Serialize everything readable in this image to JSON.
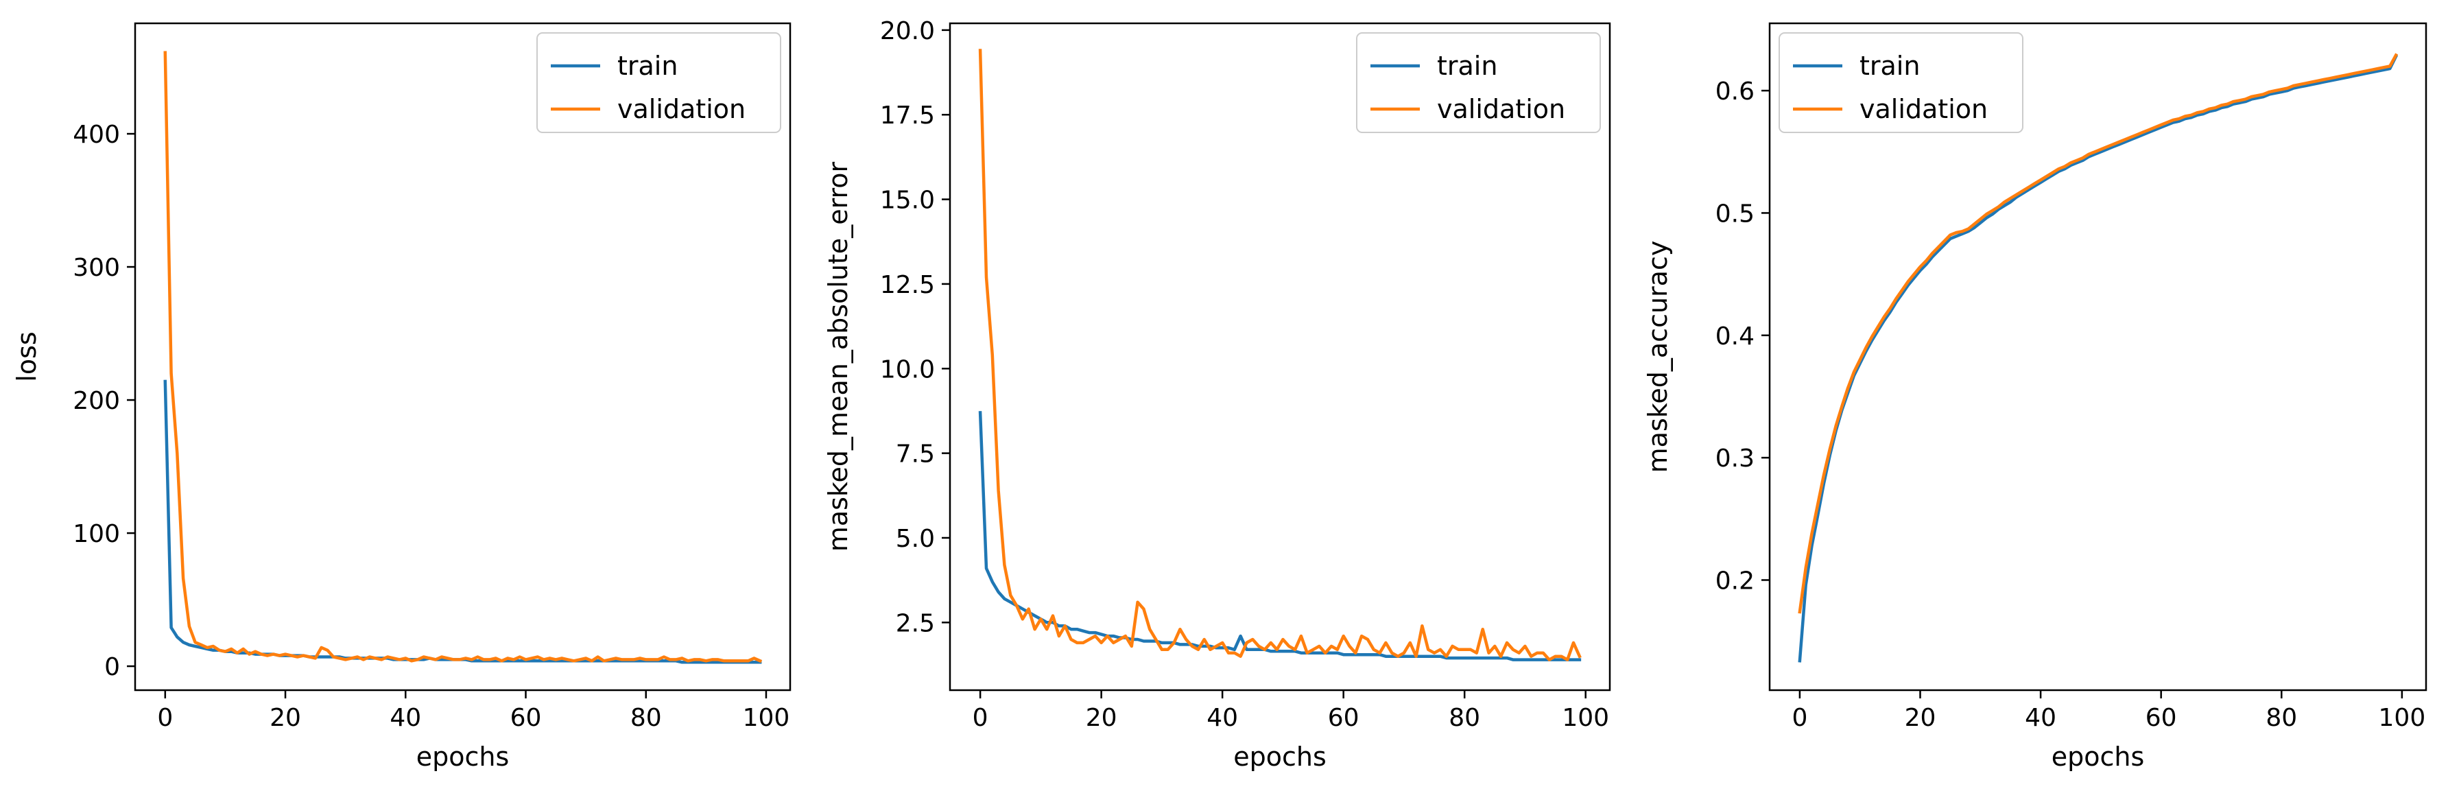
{
  "chart_data": [
    {
      "type": "line",
      "xlabel": "epochs",
      "ylabel": "loss",
      "xlim": [
        -5,
        104
      ],
      "ylim": [
        -18,
        483
      ],
      "xticks": [
        0,
        20,
        40,
        60,
        80,
        100
      ],
      "yticks": [
        0,
        100,
        200,
        300,
        400
      ],
      "yticks_labels": [
        "0",
        "100",
        "200",
        "300",
        "400"
      ],
      "grid": false,
      "legend": "top-right",
      "series": [
        {
          "name": "train",
          "color": "#1f77b4",
          "values": [
            214,
            29,
            22,
            18,
            16,
            15,
            14,
            13,
            12,
            12,
            11,
            11,
            10,
            10,
            10,
            9,
            9,
            9,
            9,
            8,
            8,
            8,
            8,
            8,
            7,
            7,
            7,
            7,
            7,
            7,
            6,
            6,
            6,
            6,
            6,
            6,
            6,
            6,
            5,
            5,
            5,
            5,
            5,
            5,
            6,
            5,
            5,
            5,
            5,
            5,
            5,
            4,
            4,
            4,
            4,
            4,
            4,
            4,
            4,
            4,
            4,
            4,
            4,
            4,
            4,
            4,
            4,
            4,
            4,
            4,
            4,
            4,
            4,
            4,
            4,
            4,
            4,
            4,
            4,
            4,
            4,
            4,
            4,
            4,
            4,
            4,
            3,
            3,
            3,
            3,
            3,
            3,
            3,
            3,
            3,
            3,
            3,
            3,
            3,
            3
          ]
        },
        {
          "name": "validation",
          "color": "#ff7f0e",
          "values": [
            461,
            220,
            160,
            66,
            30,
            18,
            16,
            14,
            15,
            12,
            11,
            13,
            10,
            13,
            9,
            11,
            9,
            8,
            9,
            8,
            9,
            8,
            7,
            8,
            7,
            6,
            14,
            12,
            7,
            6,
            5,
            6,
            7,
            5,
            7,
            6,
            5,
            7,
            6,
            5,
            6,
            4,
            5,
            7,
            6,
            5,
            7,
            6,
            5,
            5,
            6,
            5,
            7,
            5,
            5,
            6,
            4,
            6,
            5,
            7,
            5,
            6,
            7,
            5,
            6,
            5,
            6,
            5,
            4,
            5,
            6,
            4,
            7,
            4,
            5,
            6,
            5,
            5,
            5,
            6,
            5,
            5,
            5,
            7,
            5,
            5,
            6,
            4,
            5,
            5,
            4,
            5,
            5,
            4,
            4,
            4,
            4,
            4,
            6,
            4
          ]
        }
      ]
    },
    {
      "type": "line",
      "xlabel": "epochs",
      "ylabel": "masked_mean_absolute_error",
      "xlim": [
        -5,
        104
      ],
      "ylim": [
        0.5,
        20.2
      ],
      "xticks": [
        0,
        20,
        40,
        60,
        80,
        100
      ],
      "yticks": [
        2.5,
        5.0,
        7.5,
        10.0,
        12.5,
        15.0,
        17.5,
        20.0
      ],
      "yticks_labels": [
        "2.5",
        "5.0",
        "7.5",
        "10.0",
        "12.5",
        "15.0",
        "17.5",
        "20.0"
      ],
      "grid": false,
      "legend": "top-right",
      "series": [
        {
          "name": "train",
          "color": "#1f77b4",
          "values": [
            8.7,
            4.1,
            3.7,
            3.4,
            3.2,
            3.1,
            3.0,
            2.9,
            2.8,
            2.7,
            2.6,
            2.5,
            2.5,
            2.4,
            2.4,
            2.3,
            2.3,
            2.25,
            2.2,
            2.2,
            2.15,
            2.1,
            2.1,
            2.05,
            2.05,
            2.0,
            2.0,
            1.95,
            1.95,
            1.95,
            1.9,
            1.9,
            1.9,
            1.85,
            1.85,
            1.85,
            1.8,
            1.8,
            1.8,
            1.75,
            1.75,
            1.75,
            1.7,
            2.1,
            1.7,
            1.7,
            1.7,
            1.7,
            1.65,
            1.65,
            1.65,
            1.65,
            1.65,
            1.6,
            1.6,
            1.6,
            1.6,
            1.6,
            1.6,
            1.6,
            1.55,
            1.55,
            1.55,
            1.55,
            1.55,
            1.55,
            1.55,
            1.5,
            1.5,
            1.5,
            1.5,
            1.5,
            1.5,
            1.5,
            1.5,
            1.5,
            1.5,
            1.45,
            1.45,
            1.45,
            1.45,
            1.45,
            1.45,
            1.45,
            1.45,
            1.45,
            1.45,
            1.45,
            1.4,
            1.4,
            1.4,
            1.4,
            1.4,
            1.4,
            1.4,
            1.4,
            1.4,
            1.4,
            1.4,
            1.4
          ]
        },
        {
          "name": "validation",
          "color": "#ff7f0e",
          "values": [
            19.4,
            12.7,
            10.4,
            6.4,
            4.2,
            3.3,
            3.0,
            2.6,
            2.9,
            2.3,
            2.6,
            2.3,
            2.7,
            2.1,
            2.4,
            2.0,
            1.9,
            1.9,
            2.0,
            2.1,
            1.9,
            2.1,
            1.9,
            2.0,
            2.1,
            1.8,
            3.1,
            2.9,
            2.3,
            2.0,
            1.7,
            1.7,
            1.9,
            2.3,
            2.0,
            1.8,
            1.7,
            2.0,
            1.7,
            1.8,
            1.9,
            1.6,
            1.6,
            1.5,
            1.9,
            2.0,
            1.8,
            1.7,
            1.9,
            1.7,
            2.0,
            1.8,
            1.7,
            2.1,
            1.6,
            1.7,
            1.8,
            1.6,
            1.8,
            1.7,
            2.1,
            1.8,
            1.6,
            2.1,
            2.0,
            1.7,
            1.6,
            1.9,
            1.6,
            1.5,
            1.6,
            1.9,
            1.5,
            2.4,
            1.7,
            1.6,
            1.7,
            1.5,
            1.8,
            1.7,
            1.7,
            1.7,
            1.6,
            2.3,
            1.6,
            1.8,
            1.5,
            1.9,
            1.7,
            1.6,
            1.8,
            1.5,
            1.6,
            1.6,
            1.4,
            1.5,
            1.5,
            1.4,
            1.9,
            1.5
          ]
        }
      ]
    },
    {
      "type": "line",
      "xlabel": "epochs",
      "ylabel": "masked_accuracy",
      "xlim": [
        -5,
        104
      ],
      "ylim": [
        0.11,
        0.655
      ],
      "xticks": [
        0,
        20,
        40,
        60,
        80,
        100
      ],
      "yticks": [
        0.2,
        0.3,
        0.4,
        0.5,
        0.6
      ],
      "yticks_labels": [
        "0.2",
        "0.3",
        "0.4",
        "0.5",
        "0.6"
      ],
      "grid": false,
      "legend": "top-left",
      "series": [
        {
          "name": "train",
          "color": "#1f77b4",
          "values": [
            0.134,
            0.196,
            0.228,
            0.253,
            0.279,
            0.302,
            0.322,
            0.339,
            0.353,
            0.367,
            0.377,
            0.387,
            0.396,
            0.404,
            0.412,
            0.419,
            0.427,
            0.434,
            0.441,
            0.447,
            0.453,
            0.458,
            0.464,
            0.469,
            0.474,
            0.479,
            0.481,
            0.483,
            0.485,
            0.488,
            0.492,
            0.496,
            0.499,
            0.503,
            0.506,
            0.509,
            0.513,
            0.516,
            0.519,
            0.522,
            0.525,
            0.528,
            0.531,
            0.534,
            0.536,
            0.539,
            0.541,
            0.543,
            0.546,
            0.548,
            0.55,
            0.552,
            0.554,
            0.556,
            0.558,
            0.56,
            0.562,
            0.564,
            0.566,
            0.568,
            0.57,
            0.572,
            0.574,
            0.575,
            0.577,
            0.578,
            0.58,
            0.581,
            0.583,
            0.584,
            0.586,
            0.587,
            0.589,
            0.59,
            0.591,
            0.593,
            0.594,
            0.595,
            0.597,
            0.598,
            0.599,
            0.6,
            0.602,
            0.603,
            0.604,
            0.605,
            0.606,
            0.607,
            0.608,
            0.609,
            0.61,
            0.611,
            0.612,
            0.613,
            0.614,
            0.615,
            0.616,
            0.617,
            0.618,
            0.628
          ]
        },
        {
          "name": "validation",
          "color": "#ff7f0e",
          "values": [
            0.174,
            0.21,
            0.238,
            0.262,
            0.286,
            0.307,
            0.326,
            0.342,
            0.357,
            0.37,
            0.38,
            0.39,
            0.399,
            0.407,
            0.415,
            0.422,
            0.43,
            0.437,
            0.444,
            0.45,
            0.456,
            0.461,
            0.467,
            0.472,
            0.477,
            0.482,
            0.484,
            0.485,
            0.487,
            0.491,
            0.495,
            0.499,
            0.502,
            0.505,
            0.509,
            0.512,
            0.515,
            0.518,
            0.521,
            0.524,
            0.527,
            0.53,
            0.533,
            0.536,
            0.538,
            0.541,
            0.543,
            0.545,
            0.548,
            0.55,
            0.552,
            0.554,
            0.556,
            0.558,
            0.56,
            0.562,
            0.564,
            0.566,
            0.568,
            0.57,
            0.572,
            0.574,
            0.576,
            0.577,
            0.579,
            0.58,
            0.582,
            0.583,
            0.585,
            0.586,
            0.588,
            0.589,
            0.591,
            0.592,
            0.593,
            0.595,
            0.596,
            0.597,
            0.599,
            0.6,
            0.601,
            0.602,
            0.604,
            0.605,
            0.606,
            0.607,
            0.608,
            0.609,
            0.61,
            0.611,
            0.612,
            0.613,
            0.614,
            0.615,
            0.616,
            0.617,
            0.618,
            0.619,
            0.62,
            0.629
          ]
        }
      ]
    }
  ]
}
